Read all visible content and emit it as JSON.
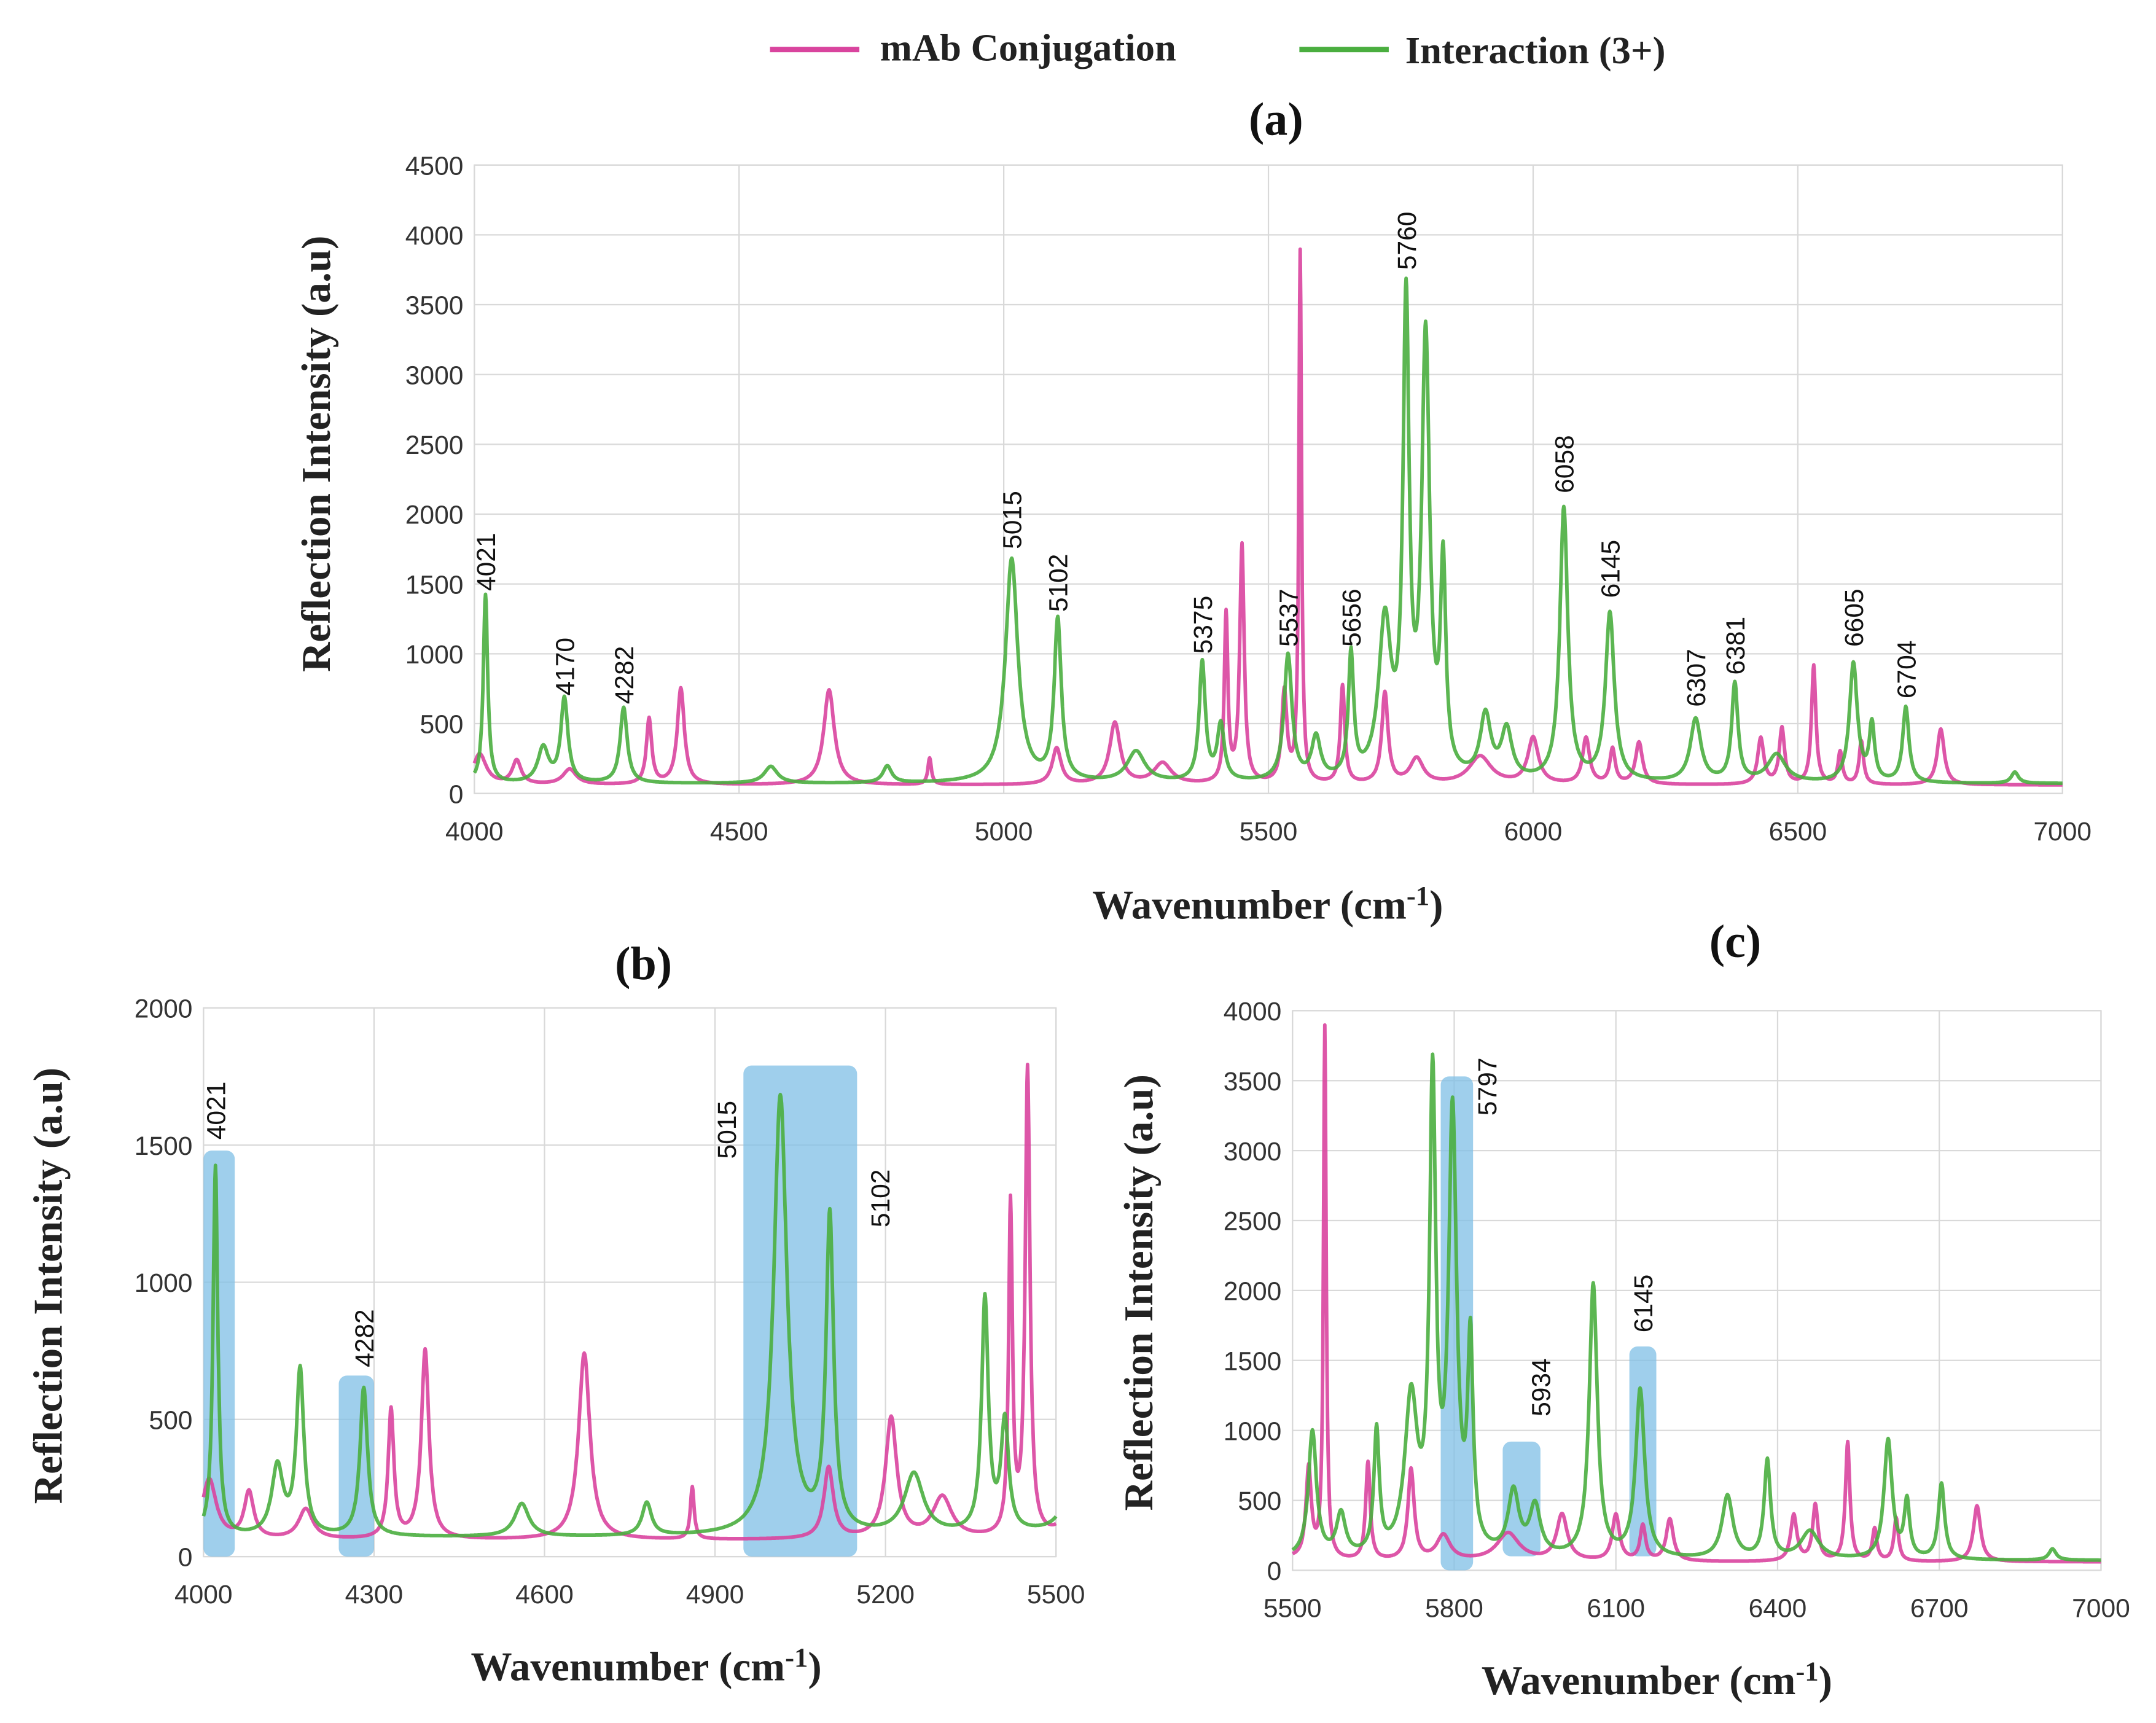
{
  "legend": {
    "series1": "mAb Conjugation",
    "series2": "Interaction (3+)"
  },
  "colors": {
    "series1": "#d9449e",
    "series2": "#4aae3f",
    "highlight": "#7fbfe6"
  },
  "chart_data": [
    {
      "type": "line",
      "id": "a",
      "title": "(a)",
      "xlabel": "Wavenumber (cm-1)",
      "xlabel_main": "Wavenumber (cm",
      "xlabel_sup": "-1",
      "xlabel_end": ")",
      "ylabel": "Reflection Intensity (a.u)",
      "xlim": [
        4000,
        7000
      ],
      "ylim": [
        0,
        4500
      ],
      "xticks": [
        4000,
        4500,
        5000,
        5500,
        6000,
        6500,
        7000
      ],
      "yticks": [
        0,
        500,
        1000,
        1500,
        2000,
        2500,
        3000,
        3500,
        4000,
        4500
      ],
      "peak_labels": [
        {
          "x": 4021,
          "y": 1450,
          "text": "4021"
        },
        {
          "x": 4170,
          "y": 700,
          "text": "4170"
        },
        {
          "x": 4282,
          "y": 640,
          "text": "4282"
        },
        {
          "x": 5015,
          "y": 1750,
          "text": "5015"
        },
        {
          "x": 5102,
          "y": 1300,
          "text": "5102"
        },
        {
          "x": 5375,
          "y": 1000,
          "text": "5375"
        },
        {
          "x": 5537,
          "y": 1050,
          "text": "5537"
        },
        {
          "x": 5656,
          "y": 1050,
          "text": "5656"
        },
        {
          "x": 5760,
          "y": 3750,
          "text": "5760"
        },
        {
          "x": 6058,
          "y": 2150,
          "text": "6058"
        },
        {
          "x": 6145,
          "y": 1400,
          "text": "6145"
        },
        {
          "x": 6307,
          "y": 620,
          "text": "6307"
        },
        {
          "x": 6381,
          "y": 850,
          "text": "6381"
        },
        {
          "x": 6605,
          "y": 1050,
          "text": "6605"
        },
        {
          "x": 6704,
          "y": 680,
          "text": "6704"
        }
      ],
      "highlights": []
    },
    {
      "type": "line",
      "id": "b",
      "title": "(b)",
      "xlabel": "Wavenumber (cm-1)",
      "xlabel_main": "Wavenumber (cm",
      "xlabel_sup": "-1",
      "xlabel_end": ")",
      "ylabel": "Reflection Intensity (a.u)",
      "xlim": [
        4000,
        5500
      ],
      "ylim": [
        0,
        2000
      ],
      "xticks": [
        4000,
        4300,
        4600,
        4900,
        5200,
        5500
      ],
      "yticks": [
        0,
        500,
        1000,
        1500,
        2000
      ],
      "peak_labels": [
        {
          "x": 4021,
          "y": 1520,
          "text": "4021"
        },
        {
          "x": 4282,
          "y": 690,
          "text": "4282"
        },
        {
          "x": 4920,
          "y": 1450,
          "text": "5015"
        },
        {
          "x": 5190,
          "y": 1200,
          "text": "5102"
        }
      ],
      "highlights": [
        [
          4000,
          4055,
          0,
          1480
        ],
        [
          4238,
          4300,
          0,
          660
        ],
        [
          4950,
          5150,
          0,
          1790
        ]
      ]
    },
    {
      "type": "line",
      "id": "c",
      "title": "(c)",
      "xlabel": "Wavenumber (cm-1)",
      "xlabel_main": "Wavenumber (cm",
      "xlabel_sup": "-1",
      "xlabel_end": ")",
      "ylabel": "Reflection Intensity (a.u)",
      "xlim": [
        5500,
        7000
      ],
      "ylim": [
        0,
        4000
      ],
      "xticks": [
        5500,
        5800,
        6100,
        6400,
        6700,
        7000
      ],
      "yticks": [
        0,
        500,
        1000,
        1500,
        2000,
        2500,
        3000,
        3500,
        4000
      ],
      "peak_labels": [
        {
          "x": 5860,
          "y": 3250,
          "text": "5797"
        },
        {
          "x": 5960,
          "y": 1100,
          "text": "5934"
        },
        {
          "x": 6150,
          "y": 1700,
          "text": "6145"
        }
      ],
      "highlights": [
        [
          5775,
          5835,
          0,
          3530
        ],
        [
          5890,
          5960,
          100,
          920
        ],
        [
          6125,
          6175,
          100,
          1600
        ]
      ]
    }
  ],
  "series": [
    {
      "name": "mAb Conjugation",
      "baseline": 60,
      "peaks": [
        [
          4010,
          220,
          15
        ],
        [
          4080,
          170,
          10
        ],
        [
          4180,
          110,
          15
        ],
        [
          4330,
          470,
          6
        ],
        [
          4390,
          690,
          8
        ],
        [
          4670,
          680,
          12
        ],
        [
          4860,
          190,
          4
        ],
        [
          5100,
          260,
          10
        ],
        [
          5210,
          440,
          12
        ],
        [
          5300,
          150,
          20
        ],
        [
          5420,
          1200,
          4
        ],
        [
          5450,
          1700,
          5
        ],
        [
          5530,
          650,
          6
        ],
        [
          5560,
          3800,
          3
        ],
        [
          5640,
          700,
          5
        ],
        [
          5720,
          650,
          7
        ],
        [
          5780,
          180,
          15
        ],
        [
          5900,
          200,
          25
        ],
        [
          6000,
          330,
          12
        ],
        [
          6100,
          330,
          8
        ],
        [
          6150,
          250,
          6
        ],
        [
          6200,
          300,
          8
        ],
        [
          6430,
          330,
          7
        ],
        [
          6470,
          400,
          6
        ],
        [
          6530,
          850,
          5
        ],
        [
          6580,
          230,
          5
        ],
        [
          6620,
          310,
          5
        ],
        [
          6770,
          400,
          8
        ]
      ]
    },
    {
      "name": "Interaction (3+)",
      "baseline": 70,
      "peaks": [
        [
          4021,
          1350,
          5
        ],
        [
          4130,
          250,
          12
        ],
        [
          4170,
          600,
          8
        ],
        [
          4282,
          540,
          8
        ],
        [
          4560,
          120,
          15
        ],
        [
          4780,
          120,
          10
        ],
        [
          5015,
          1600,
          14
        ],
        [
          5102,
          1150,
          8
        ],
        [
          5250,
          220,
          20
        ],
        [
          5375,
          850,
          7
        ],
        [
          5410,
          400,
          8
        ],
        [
          5537,
          900,
          9
        ],
        [
          5590,
          300,
          10
        ],
        [
          5656,
          880,
          6
        ],
        [
          5720,
          1100,
          14
        ],
        [
          5760,
          3300,
          7
        ],
        [
          5797,
          3100,
          9
        ],
        [
          5830,
          1450,
          6
        ],
        [
          5910,
          450,
          12
        ],
        [
          5950,
          350,
          12
        ],
        [
          6058,
          1950,
          9
        ],
        [
          6145,
          1200,
          10
        ],
        [
          6307,
          450,
          12
        ],
        [
          6381,
          700,
          7
        ],
        [
          6460,
          200,
          20
        ],
        [
          6605,
          850,
          9
        ],
        [
          6640,
          400,
          6
        ],
        [
          6704,
          540,
          7
        ],
        [
          6910,
          80,
          8
        ]
      ]
    }
  ]
}
